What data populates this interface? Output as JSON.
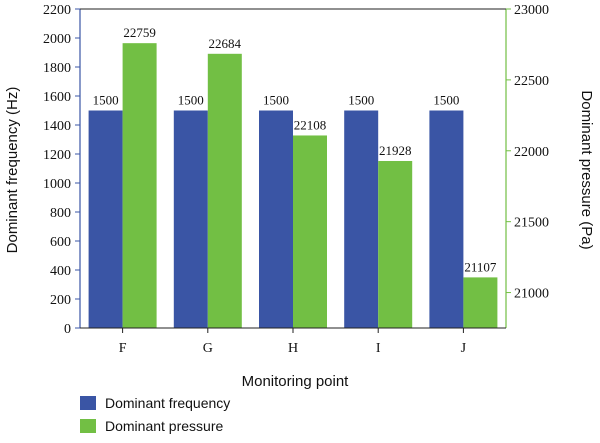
{
  "chart_data": {
    "type": "bar",
    "categories": [
      "F",
      "G",
      "H",
      "I",
      "J"
    ],
    "series": [
      {
        "name": "Dominant frequency",
        "axis": "left",
        "color": "#3a55a5",
        "values": [
          1500,
          1500,
          1500,
          1500,
          1500
        ]
      },
      {
        "name": "Dominant pressure",
        "axis": "right",
        "color": "#72bf44",
        "values": [
          22759,
          22684,
          22108,
          21928,
          21107
        ]
      }
    ],
    "xlabel": "Monitoring point",
    "ylabel": "Dominant frequency (Hz)",
    "y2label": "Dominant pressure (Pa)",
    "ylim": [
      0,
      2200
    ],
    "y2lim": [
      20750,
      23000
    ],
    "yticks": [
      0,
      200,
      400,
      600,
      800,
      1000,
      1200,
      1400,
      1600,
      1800,
      2000,
      2200
    ],
    "y2ticks": [
      21000,
      21500,
      22000,
      22500,
      23000
    ],
    "left_axis_color": "#3a55a5",
    "right_axis_color": "#72bf44",
    "grid": false,
    "legend_position": "bottom-left"
  }
}
